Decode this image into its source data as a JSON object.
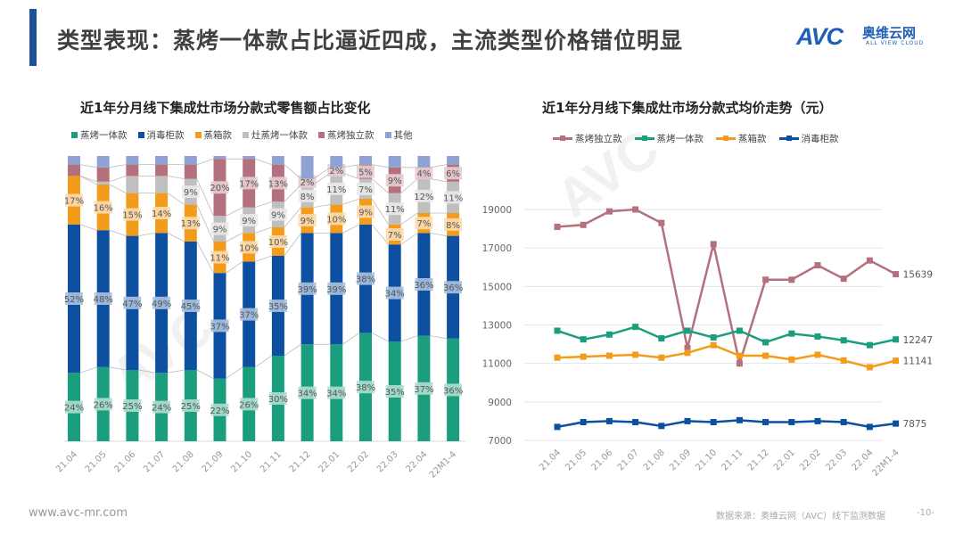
{
  "header": {
    "title": "类型表现：蒸烤一体款占比逼近四成，主流类型价格错位明显"
  },
  "logo": {
    "mark": "AVC",
    "cn": "奥维云网",
    "en": "ALL VIEW CLOUD"
  },
  "footer": {
    "website": "www.avc-mr.com",
    "source": "数据来源：奥维云网（AVC）线下监测数据",
    "page": "-10-"
  },
  "chart_data": [
    {
      "type": "bar",
      "stacked": "percent",
      "title": "近1年分月线下集成灶市场分款式零售额占比变化",
      "legend_position": "top",
      "categories": [
        "21.04",
        "21.05",
        "21.06",
        "21.07",
        "21.08",
        "21.09",
        "21.10",
        "21.11",
        "21.12",
        "22.01",
        "22.02",
        "22.03",
        "22.04",
        "22M1-4"
      ],
      "series": [
        {
          "name": "蒸烤一体款",
          "color": "#1a9e7e",
          "values": [
            24,
            26,
            25,
            24,
            25,
            22,
            26,
            30,
            34,
            34,
            38,
            35,
            37,
            36
          ],
          "labeled": [
            1,
            1,
            1,
            1,
            1,
            1,
            1,
            1,
            1,
            1,
            1,
            1,
            1,
            1
          ]
        },
        {
          "name": "消毒柜款",
          "color": "#0d4fa0",
          "values": [
            52,
            48,
            47,
            49,
            45,
            37,
            37,
            35,
            39,
            39,
            38,
            34,
            36,
            36
          ],
          "labeled": [
            1,
            1,
            1,
            1,
            1,
            1,
            1,
            1,
            1,
            1,
            1,
            1,
            1,
            1
          ]
        },
        {
          "name": "蒸箱款",
          "color": "#f39c1c",
          "values": [
            17,
            16,
            15,
            14,
            13,
            11,
            10,
            10,
            9,
            10,
            9,
            7,
            7,
            8
          ],
          "labeled": [
            1,
            1,
            1,
            1,
            1,
            1,
            1,
            1,
            1,
            1,
            1,
            1,
            1,
            1
          ]
        },
        {
          "name": "灶蒸烤一体款",
          "color": "#bfbfbf",
          "values": [
            0,
            1,
            6,
            6,
            9,
            9,
            9,
            9,
            8,
            11,
            7,
            11,
            12,
            11
          ],
          "labeled": [
            0,
            0,
            0,
            0,
            1,
            1,
            1,
            1,
            1,
            1,
            1,
            1,
            1,
            1
          ]
        },
        {
          "name": "蒸烤独立款",
          "color": "#b5707e",
          "values": [
            4,
            5,
            4,
            4,
            5,
            20,
            17,
            13,
            2,
            2,
            5,
            9,
            4,
            6
          ],
          "labeled": [
            0,
            0,
            0,
            0,
            0,
            1,
            1,
            1,
            1,
            1,
            1,
            1,
            1,
            1
          ]
        },
        {
          "name": "其他",
          "color": "#8ea3d4",
          "values": [
            3,
            4,
            3,
            3,
            3,
            1,
            1,
            3,
            8,
            4,
            3,
            4,
            4,
            3
          ],
          "labeled": [
            0,
            0,
            0,
            0,
            0,
            0,
            0,
            0,
            0,
            0,
            0,
            0,
            0,
            0
          ]
        }
      ],
      "ylim": [
        0,
        100
      ],
      "value_format": "%"
    },
    {
      "type": "line",
      "title": "近1年分月线下集成灶市场分款式均价走势（元）",
      "legend_position": "top",
      "categories": [
        "21.04",
        "21.05",
        "21.06",
        "21.07",
        "21.08",
        "21.09",
        "21.10",
        "21.11",
        "21.12",
        "22.01",
        "22.02",
        "22.03",
        "22.04",
        "22M1-4"
      ],
      "yticks": [
        7000,
        9000,
        11000,
        13000,
        15000,
        17000,
        19000
      ],
      "ylim": [
        7000,
        19000
      ],
      "grid": true,
      "series": [
        {
          "name": "蒸烤独立款",
          "color": "#b5707e",
          "values": [
            18100,
            18200,
            18900,
            19000,
            18300,
            11800,
            17200,
            11000,
            15350,
            15350,
            16100,
            15400,
            16350,
            15639
          ],
          "end_label": "15639"
        },
        {
          "name": "蒸烤一体款",
          "color": "#1a9e7e",
          "values": [
            12700,
            12250,
            12500,
            12900,
            12300,
            12700,
            12350,
            12700,
            12100,
            12550,
            12400,
            12200,
            11950,
            12247
          ],
          "end_label": "12247"
        },
        {
          "name": "蒸箱款",
          "color": "#f39c1c",
          "values": [
            11300,
            11350,
            11400,
            11450,
            11300,
            11550,
            11950,
            11400,
            11400,
            11200,
            11450,
            11150,
            10800,
            11141
          ],
          "end_label": "11141"
        },
        {
          "name": "消毒柜款",
          "color": "#0d4fa0",
          "values": [
            7700,
            7950,
            8000,
            7950,
            7750,
            8000,
            7950,
            8050,
            7950,
            7950,
            8000,
            7950,
            7700,
            7875
          ],
          "end_label": "7875"
        }
      ]
    }
  ]
}
